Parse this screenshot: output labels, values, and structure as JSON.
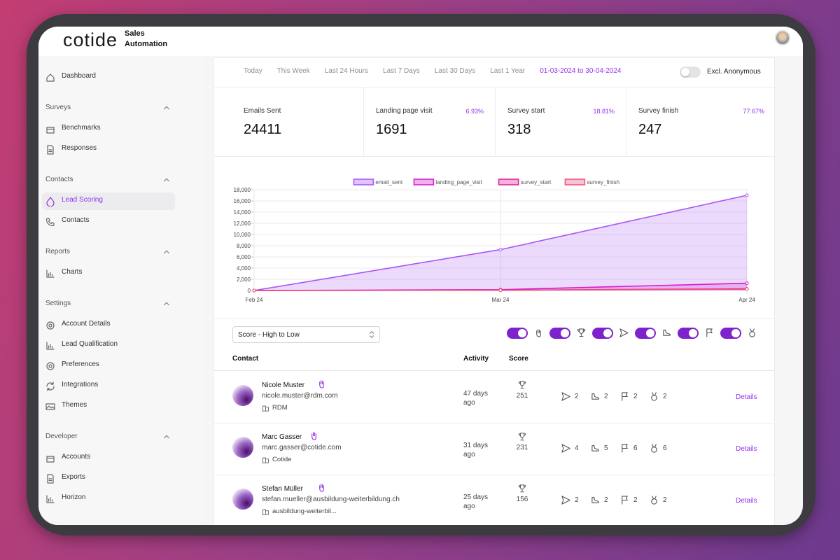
{
  "header": {
    "logo": "cotide",
    "product": "Sales Automation"
  },
  "sidebar": {
    "top": [
      "Dashboard"
    ],
    "sections": [
      {
        "title": "Surveys",
        "items": [
          {
            "label": "Benchmarks"
          },
          {
            "label": "Responses"
          }
        ]
      },
      {
        "title": "Contacts",
        "items": [
          {
            "label": "Lead Scoring",
            "active": true
          },
          {
            "label": "Contacts"
          }
        ]
      },
      {
        "title": "Reports",
        "items": [
          {
            "label": "Charts"
          }
        ]
      },
      {
        "title": "Settings",
        "items": [
          {
            "label": "Account Details"
          },
          {
            "label": "Lead Qualification"
          },
          {
            "label": "Preferences"
          },
          {
            "label": "Integrations"
          },
          {
            "label": "Themes"
          }
        ]
      },
      {
        "title": "Developer",
        "items": [
          {
            "label": "Accounts"
          },
          {
            "label": "Exports"
          },
          {
            "label": "Horizon"
          }
        ]
      }
    ]
  },
  "filters": {
    "options": [
      "Today",
      "This Week",
      "Last 24 Hours",
      "Last 7 Days",
      "Last 30 Days",
      "Last 1 Year"
    ],
    "range": "01-03-2024 to 30-04-2024",
    "toggle": {
      "label": "Excl. Anonymous",
      "on": false
    }
  },
  "stats": [
    {
      "label": "Emails Sent",
      "value": 24411
    },
    {
      "label": "Landing page visit",
      "value": 1691,
      "rate": "6.93%"
    },
    {
      "label": "Survey start",
      "value": 318,
      "rate": "18.81%"
    },
    {
      "label": "Survey finish",
      "value": 247,
      "rate": "77.67%"
    }
  ],
  "chart_data": {
    "type": "line",
    "categories": [
      "Feb 24",
      "Mar 24",
      "Apr 24"
    ],
    "series": [
      {
        "name": "email_sent",
        "color": "#a855f7",
        "fill": true,
        "values": [
          0,
          7300,
          17000
        ]
      },
      {
        "name": "landing_page_visit",
        "color": "#d41ccc",
        "fill": true,
        "values": [
          0,
          150,
          1300
        ]
      },
      {
        "name": "survey_start",
        "color": "#e0209a",
        "values": [
          0,
          60,
          300
        ]
      },
      {
        "name": "survey_finish",
        "color": "#f0527e",
        "values": [
          0,
          40,
          230
        ]
      }
    ],
    "ylim": [
      0,
      18000
    ],
    "yticks": [
      0,
      {
        "value": 2000,
        "label": "2,000"
      },
      {
        "value": 4000,
        "label": "4,000"
      },
      {
        "value": 6000,
        "label": "6,000"
      },
      {
        "value": 8000,
        "label": "8,000"
      },
      {
        "value": 10000,
        "label": "10,000"
      },
      {
        "value": 12000,
        "label": "12,000"
      },
      {
        "value": 14000,
        "label": "14,000"
      },
      {
        "value": 16000,
        "label": "16,000"
      },
      {
        "value": 18000,
        "label": "18,000"
      }
    ],
    "grid": true,
    "legend": "top"
  },
  "sort": "Score - High to Low",
  "filter_toggles": [
    true,
    true,
    true,
    true,
    true,
    true
  ],
  "table": {
    "columns": [
      "Contact",
      "Activity",
      "Score"
    ],
    "rows": [
      {
        "name": "Nicole Muster",
        "email": "nicole.muster@rdm.com",
        "company": "RDM",
        "activity": "47 days ago",
        "score": 251,
        "counts": [
          2,
          2,
          2,
          2
        ],
        "action": "Details"
      },
      {
        "name": "Marc Gasser",
        "email": "marc.gasser@cotide.com",
        "company": "Cotide",
        "activity": "31 days ago",
        "score": 231,
        "counts": [
          4,
          5,
          6,
          6
        ],
        "action": "Details"
      },
      {
        "name": "Stefan Müller",
        "email": "stefan.mueller@ausbildung-weiterbildung.ch",
        "company": "ausbildung-weiterbil...",
        "activity": "25 days ago",
        "score": 156,
        "counts": [
          2,
          2,
          2,
          2
        ],
        "action": "Details"
      }
    ]
  }
}
